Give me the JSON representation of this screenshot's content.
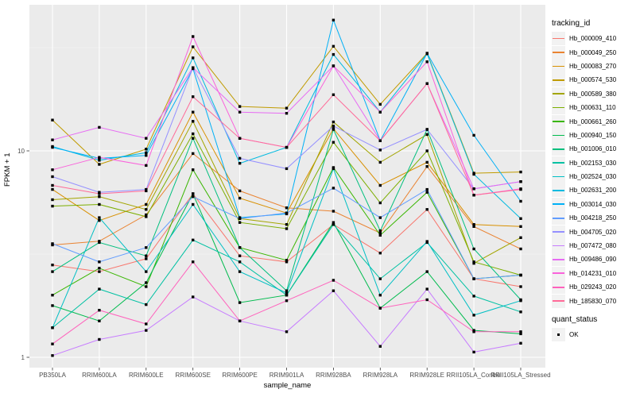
{
  "y_axis": {
    "title": "FPKM + 1",
    "tick_labels": [
      "10",
      "1"
    ]
  },
  "x_axis": {
    "title": "sample_name"
  },
  "legend": {
    "tracking_title": "tracking_id",
    "quant_title": "quant_status",
    "quant_ok_label": "OK"
  },
  "style": {
    "panel_background": "#EBEBEB",
    "grid_major_color": "#FFFFFF",
    "grid_minor_opacity": 0.55,
    "tick_mark_color": "#333333",
    "tick_label_color": "#4D4D4D",
    "legend_key_background": "#F2F2F2",
    "point_color": "#000000"
  },
  "chart_data": {
    "type": "line",
    "title": "",
    "xlabel": "sample_name",
    "ylabel": "FPKM + 1",
    "y_scale": "log10",
    "ylim": [
      0.9,
      51
    ],
    "y_major_ticks": [
      10,
      1
    ],
    "y_minor_gridlines": [
      3.1623,
      31.623
    ],
    "grid": true,
    "legend_position": "right",
    "point_marker": "black-square",
    "categories": [
      "PB350LA",
      "RRIM600LA",
      "RRIM600LE",
      "RRIM600SE",
      "RRIM600PE",
      "RRIM901LA",
      "RRIM928BA",
      "RRIM928LA",
      "RRIM928LE",
      "RRII105LA_Control",
      "RRII105LA_Stressed"
    ],
    "series": [
      {
        "name": "Hb_000009_410",
        "color": "#F8766D",
        "values": [
          2.8,
          2.6,
          3.0,
          6.2,
          3.1,
          2.9,
          4.4,
          3.2,
          5.2,
          2.4,
          2.2
        ]
      },
      {
        "name": "Hb_000049_250",
        "color": "#EA8331",
        "values": [
          3.5,
          3.65,
          4.9,
          9.7,
          6.4,
          5.3,
          5.1,
          4.0,
          8.4,
          4.3,
          3.35
        ]
      },
      {
        "name": "Hb_000083_270",
        "color": "#D89000",
        "values": [
          6.5,
          4.6,
          5.5,
          15.4,
          5.9,
          5.0,
          12.8,
          6.8,
          8.8,
          4.4,
          4.3
        ]
      },
      {
        "name": "Hb_000574_530",
        "color": "#C09B00",
        "values": [
          14.1,
          8.6,
          10.2,
          31.9,
          16.4,
          16.1,
          32.1,
          16.8,
          29.7,
          7.8,
          7.9
        ]
      },
      {
        "name": "Hb_000589_380",
        "color": "#A3A500",
        "values": [
          5.8,
          6.0,
          5.2,
          13.9,
          4.7,
          4.4,
          13.8,
          8.8,
          12.0,
          2.85,
          3.8
        ]
      },
      {
        "name": "Hb_000631_110",
        "color": "#7CAE00",
        "values": [
          5.4,
          5.5,
          4.8,
          12.1,
          4.5,
          4.2,
          11.0,
          5.6,
          10.0,
          2.9,
          2.5
        ]
      },
      {
        "name": "Hb_000661_260",
        "color": "#39B600",
        "values": [
          2.0,
          2.7,
          2.2,
          8.1,
          3.4,
          2.95,
          8.3,
          3.9,
          6.3,
          2.4,
          2.5
        ]
      },
      {
        "name": "Hb_000940_150",
        "color": "#00BB4E",
        "values": [
          1.78,
          1.5,
          2.3,
          6.2,
          1.84,
          2.0,
          4.5,
          1.73,
          2.6,
          1.35,
          1.3
        ]
      },
      {
        "name": "Hb_001006_010",
        "color": "#00BF7D",
        "values": [
          2.6,
          3.6,
          3.1,
          11.5,
          3.4,
          2.1,
          12.7,
          4.1,
          12.7,
          3.35,
          1.9
        ]
      },
      {
        "name": "Hb_002153_030",
        "color": "#00C1A3",
        "values": [
          1.39,
          2.14,
          1.8,
          3.7,
          2.9,
          2.0,
          4.4,
          2.4,
          3.6,
          1.98,
          1.66
        ]
      },
      {
        "name": "Hb_002524_030",
        "color": "#00BFC4",
        "values": [
          1.39,
          4.75,
          2.6,
          5.5,
          2.6,
          2.05,
          8.2,
          2.0,
          3.64,
          1.6,
          1.88
        ]
      },
      {
        "name": "Hb_002631_200",
        "color": "#00BAE0",
        "values": [
          10.5,
          9.0,
          9.8,
          28.2,
          8.7,
          10.4,
          29.3,
          15.4,
          29.5,
          7.7,
          4.7
        ]
      },
      {
        "name": "Hb_003014_030",
        "color": "#00B0F6",
        "values": [
          10.4,
          9.2,
          9.5,
          25.0,
          4.75,
          4.95,
          43.0,
          11.2,
          29.7,
          11.9,
          5.7
        ]
      },
      {
        "name": "Hb_004218_250",
        "color": "#619CFF",
        "values": [
          3.55,
          2.9,
          3.4,
          6.0,
          4.7,
          5.0,
          6.6,
          4.75,
          6.5,
          2.4,
          2.5
        ]
      },
      {
        "name": "Hb_004705_020",
        "color": "#9590FF",
        "values": [
          7.5,
          6.3,
          6.5,
          25.3,
          9.2,
          8.2,
          13.2,
          10.1,
          12.7,
          6.55,
          7.1
        ]
      },
      {
        "name": "Hb_007472_080",
        "color": "#C77CFF",
        "values": [
          1.02,
          1.22,
          1.35,
          1.96,
          1.5,
          1.33,
          2.1,
          1.13,
          2.14,
          1.06,
          1.17
        ]
      },
      {
        "name": "Hb_009486_090",
        "color": "#E76BF3",
        "values": [
          11.3,
          13.0,
          11.5,
          25.3,
          15.4,
          15.2,
          25.8,
          11.2,
          21.2,
          6.55,
          7.1
        ]
      },
      {
        "name": "Hb_014231_010",
        "color": "#FA62DB",
        "values": [
          8.1,
          9.3,
          8.5,
          35.8,
          11.5,
          10.4,
          25.8,
          15.4,
          27.0,
          6.1,
          6.55
        ]
      },
      {
        "name": "Hb_029243_020",
        "color": "#FF62BC",
        "values": [
          1.16,
          1.69,
          1.45,
          2.9,
          1.5,
          1.88,
          2.36,
          1.73,
          1.9,
          1.33,
          1.33
        ]
      },
      {
        "name": "Hb_185830_070",
        "color": "#FF6A98",
        "values": [
          6.8,
          6.2,
          6.4,
          18.3,
          11.5,
          10.4,
          18.7,
          11.2,
          21.2,
          6.1,
          6.5
        ]
      }
    ]
  }
}
